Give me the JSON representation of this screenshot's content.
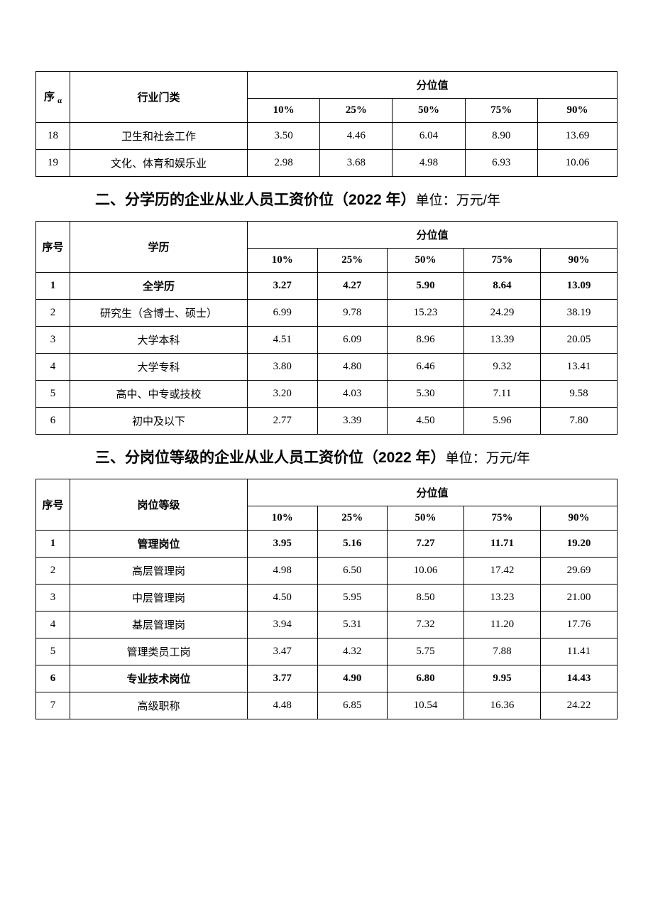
{
  "table1": {
    "header": {
      "seq": "序",
      "seq_sub": "α",
      "label": "行业门类",
      "group": "分位值",
      "p10": "10%",
      "p25": "25%",
      "p50": "50%",
      "p75": "75%",
      "p90": "90%"
    },
    "rows": [
      {
        "seq": "18",
        "label": "卫生和社会工作",
        "p10": "3.50",
        "p25": "4.46",
        "p50": "6.04",
        "p75": "8.90",
        "p90": "13.69",
        "bold": false
      },
      {
        "seq": "19",
        "label": "文化、体育和娱乐业",
        "p10": "2.98",
        "p25": "3.68",
        "p50": "4.98",
        "p75": "6.93",
        "p90": "10.06",
        "bold": false
      }
    ]
  },
  "section2": {
    "title": "二、分学历的企业从业人员工资价位（2022 年）",
    "unit": "单位：万元/年"
  },
  "table2": {
    "header": {
      "seq": "序号",
      "label": "学历",
      "group": "分位值",
      "p10": "10%",
      "p25": "25%",
      "p50": "50%",
      "p75": "75%",
      "p90": "90%"
    },
    "rows": [
      {
        "seq": "1",
        "label": "全学历",
        "p10": "3.27",
        "p25": "4.27",
        "p50": "5.90",
        "p75": "8.64",
        "p90": "13.09",
        "bold": true
      },
      {
        "seq": "2",
        "label": "研究生（含博士、硕士）",
        "p10": "6.99",
        "p25": "9.78",
        "p50": "15.23",
        "p75": "24.29",
        "p90": "38.19",
        "bold": false
      },
      {
        "seq": "3",
        "label": "大学本科",
        "p10": "4.51",
        "p25": "6.09",
        "p50": "8.96",
        "p75": "13.39",
        "p90": "20.05",
        "bold": false
      },
      {
        "seq": "4",
        "label": "大学专科",
        "p10": "3.80",
        "p25": "4.80",
        "p50": "6.46",
        "p75": "9.32",
        "p90": "13.41",
        "bold": false
      },
      {
        "seq": "5",
        "label": "高中、中专或技校",
        "p10": "3.20",
        "p25": "4.03",
        "p50": "5.30",
        "p75": "7.11",
        "p90": "9.58",
        "bold": false
      },
      {
        "seq": "6",
        "label": "初中及以下",
        "p10": "2.77",
        "p25": "3.39",
        "p50": "4.50",
        "p75": "5.96",
        "p90": "7.80",
        "bold": false
      }
    ]
  },
  "section3": {
    "title": "三、分岗位等级的企业从业人员工资价位（2022 年）",
    "unit": "单位：万元/年"
  },
  "table3": {
    "header": {
      "seq": "序号",
      "label": "岗位等级",
      "group": "分位值",
      "p10": "10%",
      "p25": "25%",
      "p50": "50%",
      "p75": "75%",
      "p90": "90%"
    },
    "rows": [
      {
        "seq": "1",
        "label": "管理岗位",
        "p10": "3.95",
        "p25": "5.16",
        "p50": "7.27",
        "p75": "11.71",
        "p90": "19.20",
        "bold": true
      },
      {
        "seq": "2",
        "label": "高层管理岗",
        "p10": "4.98",
        "p25": "6.50",
        "p50": "10.06",
        "p75": "17.42",
        "p90": "29.69",
        "bold": false
      },
      {
        "seq": "3",
        "label": "中层管理岗",
        "p10": "4.50",
        "p25": "5.95",
        "p50": "8.50",
        "p75": "13.23",
        "p90": "21.00",
        "bold": false
      },
      {
        "seq": "4",
        "label": "基层管理岗",
        "p10": "3.94",
        "p25": "5.31",
        "p50": "7.32",
        "p75": "11.20",
        "p90": "17.76",
        "bold": false
      },
      {
        "seq": "5",
        "label": "管理类员工岗",
        "p10": "3.47",
        "p25": "4.32",
        "p50": "5.75",
        "p75": "7.88",
        "p90": "11.41",
        "bold": false
      },
      {
        "seq": "6",
        "label": "专业技术岗位",
        "p10": "3.77",
        "p25": "4.90",
        "p50": "6.80",
        "p75": "9.95",
        "p90": "14.43",
        "bold": true
      },
      {
        "seq": "7",
        "label": "高级职称",
        "p10": "4.48",
        "p25": "6.85",
        "p50": "10.54",
        "p75": "16.36",
        "p90": "24.22",
        "bold": false
      }
    ]
  }
}
